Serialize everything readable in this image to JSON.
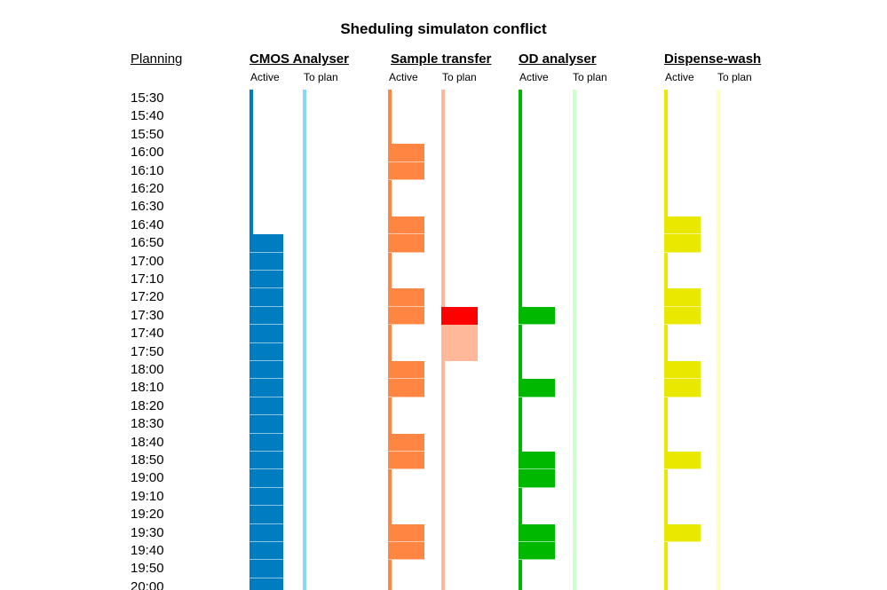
{
  "title": "Sheduling simulaton conflict",
  "planning_label": "Planning",
  "times": [
    "15:30",
    "15:40",
    "15:50",
    "16:00",
    "16:10",
    "16:20",
    "16:30",
    "16:40",
    "16:50",
    "17:00",
    "17:10",
    "17:20",
    "17:30",
    "17:40",
    "17:50",
    "18:00",
    "18:10",
    "18:20",
    "18:30",
    "18:40",
    "18:50",
    "19:00",
    "19:10",
    "19:20",
    "19:30",
    "19:40",
    "19:50",
    "20:00"
  ],
  "resources": [
    {
      "name": "CMOS Analyser",
      "active_label": "Active",
      "toplan_label": "To plan",
      "active_color": "#007dc1",
      "toplan_color": "#86d8f5",
      "active_slots": [
        "16:50",
        "17:00",
        "17:10",
        "17:20",
        "17:30",
        "17:40",
        "17:50",
        "18:00",
        "18:10",
        "18:20",
        "18:30",
        "18:40",
        "18:50",
        "19:00",
        "19:10",
        "19:20",
        "19:30",
        "19:40",
        "19:50",
        "20:00"
      ],
      "toplan_slots": [],
      "conflict_slots": []
    },
    {
      "name": "Sample transfer",
      "active_label": "Active",
      "toplan_label": "To plan",
      "active_color": "#ff8542",
      "toplan_color": "#ffb899",
      "active_slots": [
        "16:00",
        "16:10",
        "16:40",
        "16:50",
        "17:20",
        "17:30",
        "18:00",
        "18:10",
        "18:40",
        "18:50",
        "19:30",
        "19:40"
      ],
      "toplan_slots": [
        "17:40",
        "17:50"
      ],
      "conflict_slots": [
        "17:30"
      ]
    },
    {
      "name": "OD analyser",
      "active_label": "Active",
      "toplan_label": "To plan",
      "active_color": "#00b800",
      "toplan_color": "#ccffcc",
      "active_slots": [
        "17:30",
        "18:10",
        "18:50",
        "19:00",
        "19:30",
        "19:40"
      ],
      "toplan_slots": [],
      "conflict_slots": []
    },
    {
      "name": "Dispense-wash",
      "active_label": "Active",
      "toplan_label": "To plan",
      "active_color": "#e8e800",
      "toplan_color": "#ffffbf",
      "active_slots": [
        "16:40",
        "16:50",
        "17:20",
        "17:30",
        "18:00",
        "18:10",
        "18:50",
        "19:30"
      ],
      "toplan_slots": [],
      "conflict_slots": []
    }
  ],
  "conflict_color": "#ff0000"
}
